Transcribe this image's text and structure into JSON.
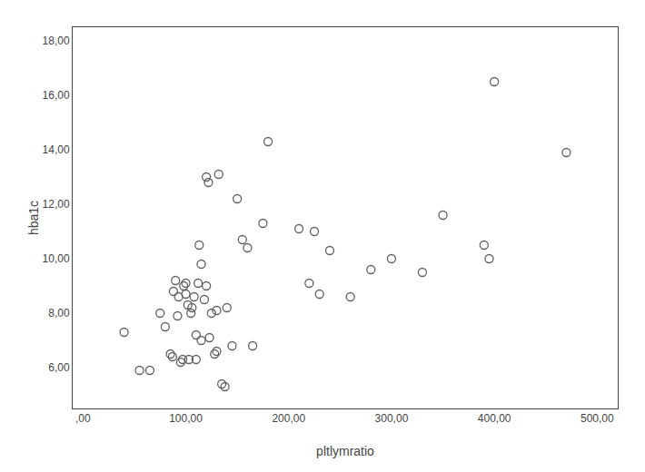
{
  "chart_data": {
    "type": "scatter",
    "x": [
      40,
      55,
      65,
      75,
      80,
      85,
      87,
      88,
      90,
      92,
      93,
      95,
      97,
      98,
      100,
      100,
      102,
      103,
      105,
      106,
      108,
      110,
      110,
      112,
      113,
      115,
      115,
      118,
      120,
      120,
      122,
      123,
      125,
      128,
      130,
      130,
      132,
      135,
      138,
      140,
      145,
      150,
      155,
      160,
      165,
      175,
      180,
      210,
      220,
      225,
      230,
      240,
      260,
      280,
      300,
      330,
      350,
      390,
      395,
      400,
      470
    ],
    "values": [
      7.3,
      5.9,
      5.9,
      8.0,
      7.5,
      6.5,
      6.4,
      8.8,
      9.2,
      7.9,
      8.6,
      6.2,
      6.3,
      9.0,
      9.1,
      8.7,
      8.3,
      6.3,
      8.0,
      8.2,
      8.6,
      6.3,
      7.2,
      9.1,
      10.5,
      7.0,
      9.8,
      8.5,
      9.0,
      13.0,
      12.8,
      7.1,
      8.0,
      6.5,
      6.6,
      8.1,
      13.1,
      5.4,
      5.3,
      8.2,
      6.8,
      12.2,
      10.7,
      10.4,
      6.8,
      11.3,
      14.3,
      11.1,
      9.1,
      11.0,
      8.7,
      10.3,
      8.6,
      9.6,
      10.0,
      9.5,
      11.6,
      10.5,
      10.0,
      16.5,
      13.9
    ],
    "xlabel": "pltlymratio",
    "ylabel": "hba1c",
    "xlim": [
      -10,
      520
    ],
    "ylim": [
      4.5,
      18.5
    ],
    "xticks": [
      {
        "value": 0,
        "label": ",00"
      },
      {
        "value": 100,
        "label": "100,00"
      },
      {
        "value": 200,
        "label": "200,00"
      },
      {
        "value": 300,
        "label": "300,00"
      },
      {
        "value": 400,
        "label": "400,00"
      },
      {
        "value": 500,
        "label": "500,00"
      }
    ],
    "yticks": [
      {
        "value": 6.0,
        "label": "6,00"
      },
      {
        "value": 8.0,
        "label": "8,00"
      },
      {
        "value": 10.0,
        "label": "10,00"
      },
      {
        "value": 12.0,
        "label": "12,00"
      },
      {
        "value": 14.0,
        "label": "14,00"
      },
      {
        "value": 16.0,
        "label": "16,00"
      },
      {
        "value": 18.0,
        "label": "18,00"
      }
    ],
    "color": "#606060",
    "marker": "circle-open",
    "grid": false
  }
}
